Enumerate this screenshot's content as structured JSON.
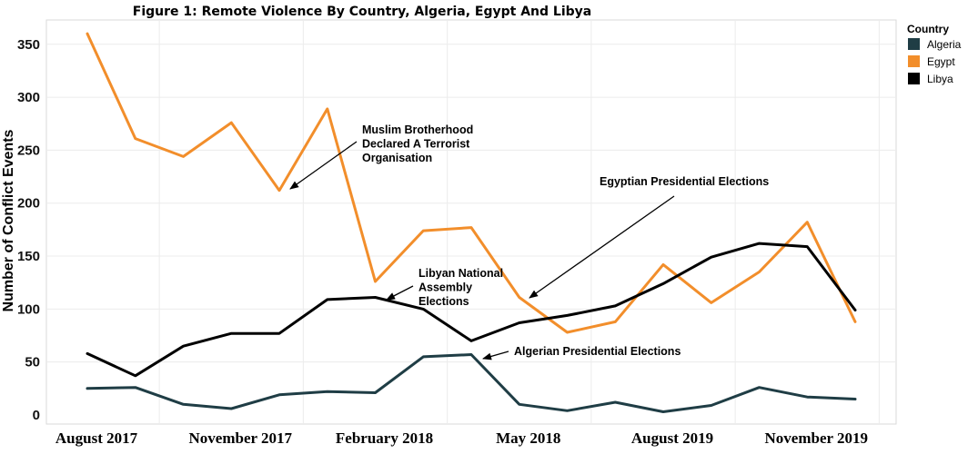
{
  "chart_data": {
    "type": "line",
    "title": "Figure 1: Remote Violence By Country, Algeria, Egypt And Libya",
    "ylabel": "Number of Conflict Events",
    "xlabel": "",
    "ylim": [
      -5,
      375
    ],
    "yticks": [
      0,
      50,
      100,
      150,
      200,
      250,
      300,
      350
    ],
    "grid": true,
    "x_tick_labels": [
      {
        "label": "August 2017",
        "index": 0
      },
      {
        "label": "November 2017",
        "index": 3
      },
      {
        "label": "February 2018",
        "index": 6
      },
      {
        "label": "May 2018",
        "index": 9
      },
      {
        "label": "August 2019",
        "index": 12
      },
      {
        "label": "November 2019",
        "index": 15
      }
    ],
    "series": [
      {
        "name": "Algeria",
        "color": "#1f3d45",
        "values": [
          25,
          26,
          10,
          6,
          19,
          22,
          21,
          55,
          57,
          10,
          4,
          12,
          3,
          9,
          26,
          17,
          15
        ]
      },
      {
        "name": "Egypt",
        "color": "#f28e2b",
        "values": [
          360,
          261,
          244,
          276,
          212,
          289,
          126,
          174,
          177,
          111,
          78,
          88,
          142,
          106,
          135,
          182,
          88
        ]
      },
      {
        "name": "Libya",
        "color": "#000000",
        "values": [
          58,
          37,
          65,
          77,
          77,
          109,
          111,
          100,
          70,
          87,
          94,
          103,
          124,
          149,
          162,
          159,
          99
        ]
      }
    ],
    "legend": {
      "title": "Country",
      "position": "top-right"
    },
    "annotations": [
      {
        "id": "mb",
        "lines": [
          "Muslim Brotherhood",
          "Declared A Terrorist",
          "Organisation"
        ],
        "target_index": 4,
        "target_series": "Egypt"
      },
      {
        "id": "egypt",
        "lines": [
          "Egyptian Presidential Elections"
        ],
        "target_index": 9,
        "target_series": "Egypt"
      },
      {
        "id": "libya",
        "lines": [
          "Libyan National",
          "Assembly",
          "Elections"
        ],
        "target_index": 6,
        "target_series": "Libya"
      },
      {
        "id": "algeria",
        "lines": [
          "Algerian Presidential Elections"
        ],
        "target_index": 8,
        "target_series": "Algeria"
      }
    ]
  }
}
